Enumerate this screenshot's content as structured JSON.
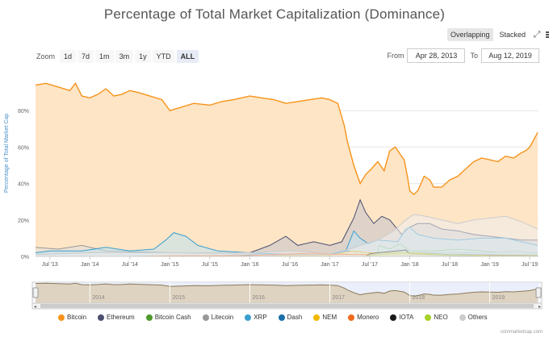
{
  "chart_data": {
    "type": "area",
    "title": "Percentage of Total Market Capitalization (Dominance)",
    "ylabel": "Percentage of Total Market Cap",
    "xlabel": "",
    "ylim": [
      0,
      100
    ],
    "y_ticks": [
      "0%",
      "20%",
      "40%",
      "60%",
      "80%"
    ],
    "y_tick_values": [
      0,
      20,
      40,
      60,
      80
    ],
    "x_ticks": [
      "Jul '13",
      "Jan '14",
      "Jul '14",
      "Jan '15",
      "Jul '15",
      "Jan '16",
      "Jul '16",
      "Jan '17",
      "Jul '17",
      "Jan '18",
      "Jul '18",
      "Jan '19",
      "Jul '19"
    ],
    "x_tick_values": [
      2013.5,
      2014.0,
      2014.5,
      2015.0,
      2015.5,
      2016.0,
      2016.5,
      2017.0,
      2017.5,
      2018.0,
      2018.5,
      2019.0,
      2019.5
    ],
    "xlim": [
      2013.32,
      2019.61
    ],
    "grid": true,
    "legend_position": "bottom",
    "series": [
      {
        "name": "Bitcoin",
        "color": "#f7931a",
        "fill": "#fde5c6",
        "x": [
          2013.32,
          2013.45,
          2013.6,
          2013.75,
          2013.82,
          2013.9,
          2014.0,
          2014.1,
          2014.2,
          2014.3,
          2014.4,
          2014.5,
          2014.6,
          2014.75,
          2014.9,
          2015.0,
          2015.15,
          2015.3,
          2015.5,
          2015.65,
          2015.8,
          2016.0,
          2016.15,
          2016.3,
          2016.45,
          2016.6,
          2016.75,
          2016.9,
          2017.0,
          2017.1,
          2017.18,
          2017.22,
          2017.3,
          2017.38,
          2017.45,
          2017.52,
          2017.6,
          2017.68,
          2017.75,
          2017.82,
          2017.88,
          2017.93,
          2017.97,
          2018.0,
          2018.05,
          2018.1,
          2018.18,
          2018.25,
          2018.3,
          2018.4,
          2018.5,
          2018.6,
          2018.7,
          2018.8,
          2018.9,
          2019.0,
          2019.1,
          2019.2,
          2019.3,
          2019.4,
          2019.45,
          2019.5,
          2019.55,
          2019.6
        ],
        "values": [
          94,
          95,
          93,
          91,
          95,
          88,
          87,
          89,
          92,
          88,
          89,
          91,
          90,
          88,
          86,
          80,
          82,
          84,
          83,
          85,
          86,
          88,
          87,
          86,
          84,
          85,
          86,
          87,
          86,
          84,
          72,
          63,
          50,
          40,
          45,
          48,
          52,
          47,
          58,
          60,
          56,
          53,
          44,
          36,
          34,
          36,
          44,
          42,
          38,
          38,
          42,
          44,
          48,
          52,
          54,
          53,
          52,
          55,
          54,
          57,
          58,
          60,
          64,
          68
        ]
      },
      {
        "name": "Ethereum",
        "color": "#4c4f70",
        "fill": "#c6c5cc",
        "x": [
          2013.32,
          2015.6,
          2016.0,
          2016.25,
          2016.45,
          2016.6,
          2016.8,
          2017.0,
          2017.15,
          2017.3,
          2017.38,
          2017.45,
          2017.55,
          2017.65,
          2017.75,
          2017.9,
          2018.0,
          2018.1,
          2018.25,
          2018.4,
          2018.6,
          2018.8,
          2019.0,
          2019.2,
          2019.4,
          2019.6
        ],
        "values": [
          0,
          0,
          2,
          6,
          11,
          6,
          8,
          6,
          8,
          21,
          31,
          24,
          18,
          22,
          20,
          12,
          16,
          18,
          18,
          15,
          14,
          12,
          11,
          10,
          9,
          9
        ]
      },
      {
        "name": "Bitcoin Cash",
        "color": "#4e9a2c",
        "fill": "#c9e2bd",
        "x": [
          2013.32,
          2017.58,
          2017.62,
          2017.75,
          2017.88,
          2018.0,
          2018.3,
          2018.6,
          2018.9,
          2019.2,
          2019.6
        ],
        "values": [
          0,
          0,
          6,
          4,
          7,
          3,
          3,
          4,
          3,
          2,
          1.5
        ]
      },
      {
        "name": "Litecoin",
        "color": "#989898",
        "fill": "#dedede",
        "x": [
          2013.32,
          2013.6,
          2013.9,
          2014.2,
          2014.6,
          2015.0,
          2015.5,
          2016.0,
          2016.5,
          2017.0,
          2017.5,
          2018.0,
          2018.5,
          2019.0,
          2019.3,
          2019.6
        ],
        "values": [
          5,
          4,
          6,
          3,
          2.5,
          2,
          1.5,
          1.5,
          1.2,
          1.3,
          2,
          2,
          2,
          2,
          3,
          2
        ]
      },
      {
        "name": "XRP",
        "color": "#3a9fd0",
        "fill": "#bfe1f1",
        "x": [
          2013.32,
          2013.5,
          2013.9,
          2014.2,
          2014.5,
          2014.8,
          2014.95,
          2015.05,
          2015.2,
          2015.35,
          2015.6,
          2016.0,
          2016.5,
          2017.0,
          2017.2,
          2017.3,
          2017.38,
          2017.48,
          2017.6,
          2017.85,
          2017.95,
          2018.0,
          2018.1,
          2018.3,
          2018.6,
          2018.9,
          2019.2,
          2019.4,
          2019.6
        ],
        "values": [
          2,
          3,
          3,
          5,
          3,
          4,
          9,
          13,
          11,
          6,
          3,
          2,
          1,
          1,
          3,
          14,
          10,
          7,
          9,
          8,
          15,
          16,
          12,
          10,
          9,
          10,
          10,
          8,
          6
        ]
      },
      {
        "name": "Dash",
        "color": "#1a6fa8",
        "fill": "#c3d8e8",
        "x": [
          2013.32,
          2015.6,
          2016.0,
          2016.5,
          2017.0,
          2017.2,
          2017.5,
          2018.0,
          2018.5,
          2019.0,
          2019.6
        ],
        "values": [
          0,
          0,
          0.8,
          0.8,
          1,
          3,
          2,
          2,
          1,
          0.8,
          0.5
        ]
      },
      {
        "name": "NEM",
        "color": "#f2b800",
        "fill": "#fbe9a8",
        "x": [
          2013.32,
          2016.2,
          2016.5,
          2017.0,
          2017.3,
          2017.5,
          2018.0,
          2018.5,
          2019.0,
          2019.6
        ],
        "values": [
          0,
          0,
          0.5,
          0.5,
          3,
          2,
          2,
          0.8,
          0.4,
          0.3
        ]
      },
      {
        "name": "Monero",
        "color": "#f06a1e",
        "fill": "#fbd2b8",
        "x": [
          2013.32,
          2014.5,
          2015.0,
          2016.0,
          2016.8,
          2017.0,
          2017.5,
          2018.0,
          2018.5,
          2019.0,
          2019.6
        ],
        "values": [
          0,
          0,
          0.3,
          0.5,
          1.8,
          1.2,
          1,
          1,
          0.8,
          0.6,
          0.5
        ]
      },
      {
        "name": "IOTA",
        "color": "#1a1a1a",
        "fill": "#cfcfcf",
        "x": [
          2013.32,
          2017.45,
          2017.5,
          2017.95,
          2018.0,
          2018.5,
          2019.0,
          2019.6
        ],
        "values": [
          0,
          0,
          1.5,
          3.5,
          1.5,
          0.6,
          0.3,
          0.3
        ]
      },
      {
        "name": "NEO",
        "color": "#a5d12a",
        "fill": "#e3f0bd",
        "x": [
          2013.32,
          2017.4,
          2017.6,
          2017.95,
          2018.1,
          2018.5,
          2019.0,
          2019.6
        ],
        "values": [
          0,
          0,
          1,
          2,
          1.5,
          0.8,
          0.3,
          0.3
        ]
      },
      {
        "name": "Others",
        "color": "#cccccc",
        "fill": "#eeeeee",
        "x": [
          2013.32,
          2014.0,
          2015.0,
          2016.0,
          2016.5,
          2017.0,
          2017.25,
          2017.45,
          2017.6,
          2017.8,
          2017.95,
          2018.05,
          2018.2,
          2018.4,
          2018.6,
          2018.8,
          2019.0,
          2019.2,
          2019.4,
          2019.6
        ],
        "values": [
          1,
          2,
          2,
          2,
          3,
          2,
          4,
          7,
          9,
          14,
          20,
          23,
          22,
          20,
          18,
          20,
          21,
          22,
          19,
          15
        ]
      }
    ],
    "navigator_ticks": [
      "2014",
      "2015",
      "2016",
      "2017",
      "2018",
      "2019"
    ],
    "navigator_tick_values": [
      2014.0,
      2015.0,
      2016.0,
      2017.0,
      2018.0,
      2019.0
    ]
  },
  "toolbar": {
    "overlapping_label": "Overlapping",
    "stacked_label": "Stacked"
  },
  "zoom": {
    "label": "Zoom",
    "options": [
      "1d",
      "7d",
      "1m",
      "3m",
      "1y",
      "YTD",
      "ALL"
    ],
    "active": "ALL"
  },
  "range": {
    "from_label": "From",
    "from_value": "Apr 28, 2013",
    "to_label": "To",
    "to_value": "Aug 12, 2019"
  },
  "credit": "coinmarketcap.com"
}
